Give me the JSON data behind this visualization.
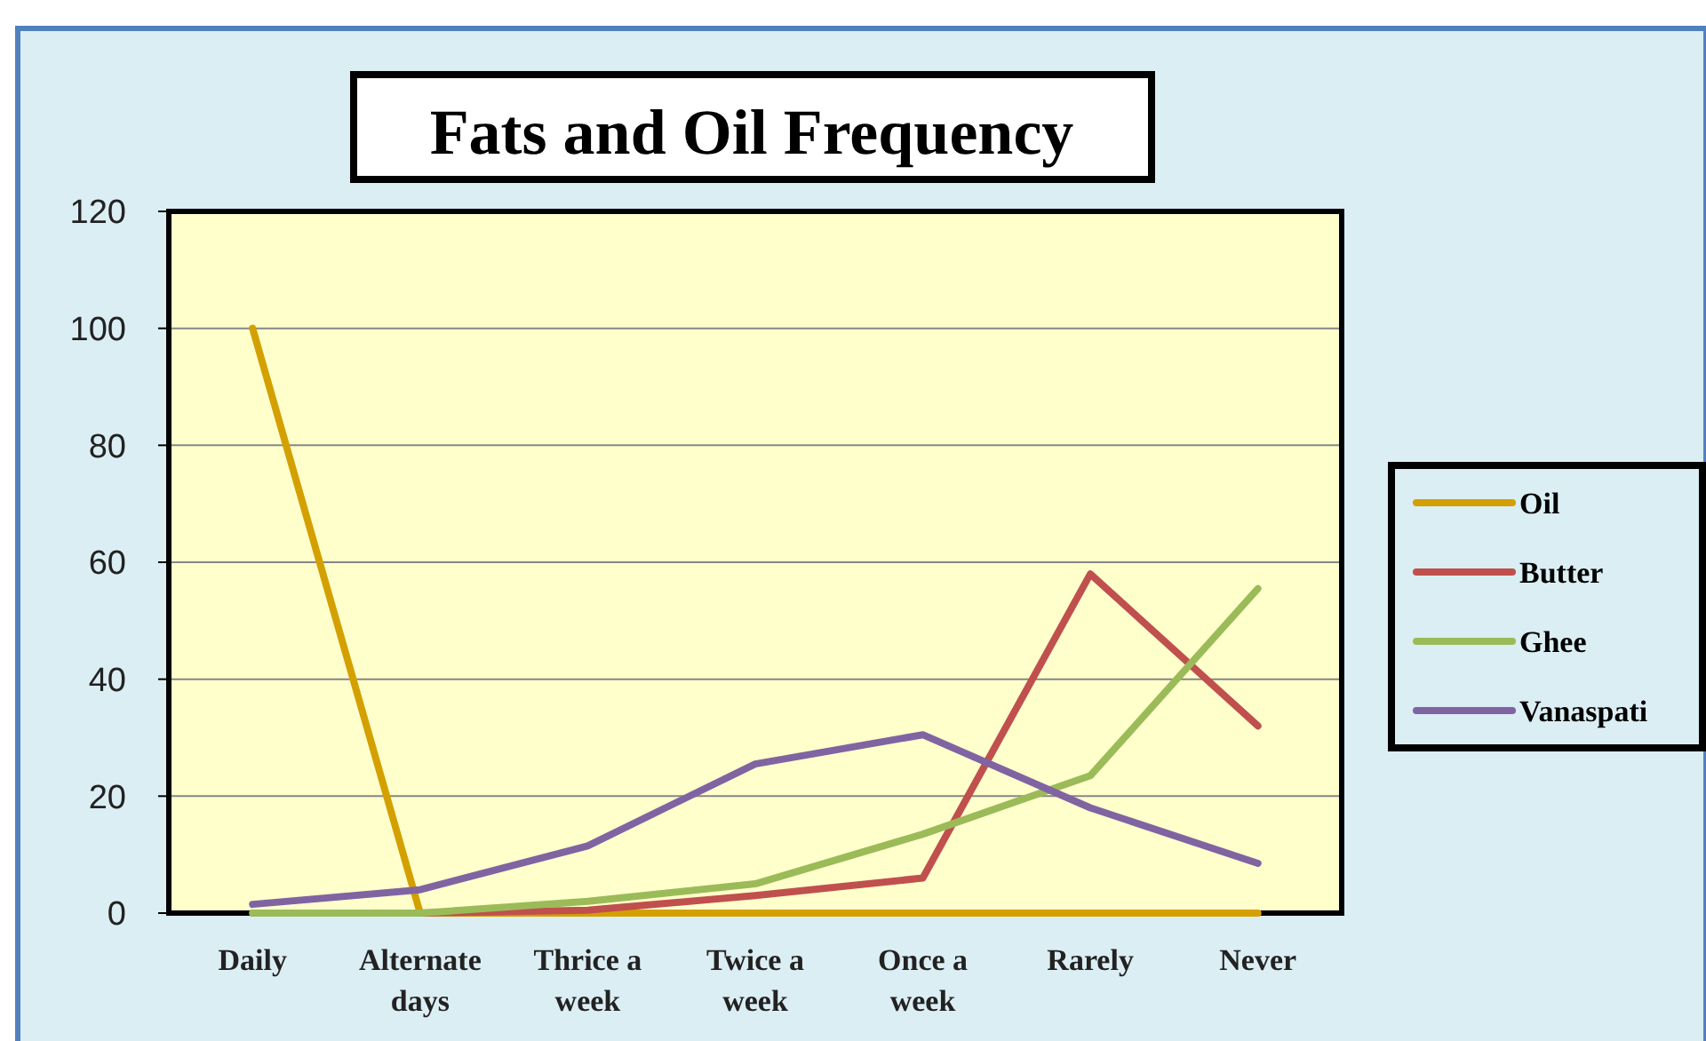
{
  "chart_data": {
    "type": "line",
    "title": "Fats and Oil Frequency",
    "categories": [
      "Daily",
      "Alternate days",
      "Thrice a week",
      "Twice a week",
      "Once a week",
      "Rarely",
      "Never"
    ],
    "series": [
      {
        "name": "Oil",
        "color": "#d4a000",
        "values": [
          100,
          0,
          0,
          0,
          0,
          0,
          0
        ]
      },
      {
        "name": "Butter",
        "color": "#c0504d",
        "values": [
          0,
          0,
          0.5,
          3,
          6,
          58,
          32
        ]
      },
      {
        "name": "Ghee",
        "color": "#9bbb59",
        "values": [
          0,
          0,
          2,
          5,
          13.5,
          23.5,
          55.5
        ]
      },
      {
        "name": "Vanaspati",
        "color": "#8064a2",
        "values": [
          1.5,
          4,
          11.5,
          25.5,
          30.5,
          18,
          8.5
        ]
      }
    ],
    "ylim": [
      0,
      120
    ],
    "yticks": [
      0,
      20,
      40,
      60,
      80,
      100,
      120
    ],
    "grid": "y",
    "legend": "right",
    "marker": "none",
    "line_style": "solid"
  }
}
